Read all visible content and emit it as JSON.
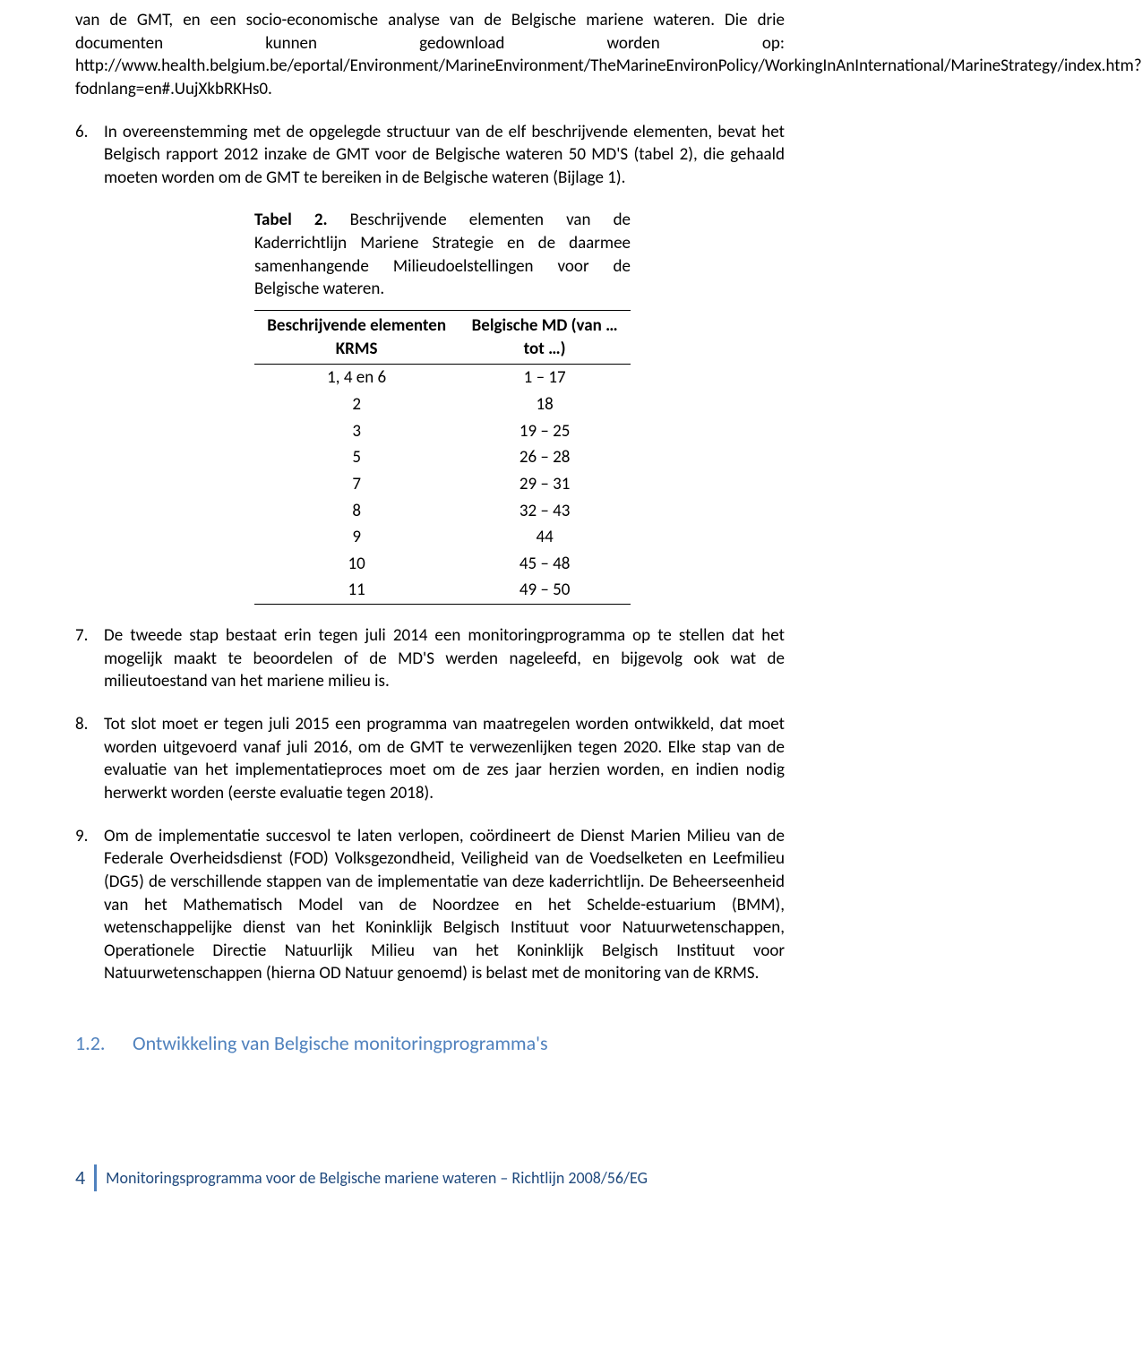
{
  "para5_continuation": "van de GMT, en een socio-economische analyse van de Belgische mariene wateren. Die drie documenten kunnen gedownload worden op: http://www.health.belgium.be/eportal/Environment/MarineEnvironment/TheMarineEnvironPolicy/WorkingInAnInternational/MarineStrategy/index.htm?fodnlang=en#.UujXkbRKHs0.",
  "para6": {
    "num": "6.",
    "text": "In overeenstemming met de opgelegde structuur van de elf beschrijvende elementen, bevat het Belgisch rapport 2012 inzake de GMT voor de Belgische wateren 50  MD'S (tabel 2), die gehaald moeten worden om de GMT te bereiken in de Belgische wateren (Bijlage 1)."
  },
  "table": {
    "caption_bold": "Tabel 2.",
    "caption_rest": " Beschrijvende elementen van de Kaderrichtlijn Mariene Strategie en de daarmee samenhangende Milieudoelstellingen voor de Belgische wateren.",
    "header_col1": "Beschrijvende elementen KRMS",
    "header_col2": "Belgische MD (van … tot …)",
    "rows": [
      {
        "c1": "1, 4 en 6",
        "c2": "1 – 17"
      },
      {
        "c1": "2",
        "c2": "18"
      },
      {
        "c1": "3",
        "c2": "19 – 25"
      },
      {
        "c1": "5",
        "c2": "26 – 28"
      },
      {
        "c1": "7",
        "c2": "29 – 31"
      },
      {
        "c1": "8",
        "c2": "32 – 43"
      },
      {
        "c1": "9",
        "c2": "44"
      },
      {
        "c1": "10",
        "c2": "45 – 48"
      },
      {
        "c1": "11",
        "c2": "49 – 50"
      }
    ]
  },
  "para7": {
    "num": "7.",
    "text": "De tweede stap bestaat erin tegen juli 2014 een monitoringprogramma op te stellen dat het mogelijk maakt te beoordelen of de MD'S werden nageleefd, en bijgevolg ook wat de milieutoestand van het mariene milieu is."
  },
  "para8": {
    "num": "8.",
    "text": "Tot slot moet er tegen juli 2015 een programma van maatregelen worden ontwikkeld, dat moet worden uitgevoerd vanaf juli 2016, om de GMT te verwezenlijken tegen 2020. Elke stap van de evaluatie van het implementatieproces moet om de zes jaar herzien worden, en indien nodig herwerkt worden (eerste evaluatie tegen 2018)."
  },
  "para9": {
    "num": "9.",
    "text": "Om de implementatie succesvol te laten verlopen, coördineert de Dienst Marien Milieu van de Federale Overheidsdienst (FOD) Volksgezondheid, Veiligheid van de Voedselketen en Leefmilieu (DG5) de verschillende stappen van de implementatie van deze kaderrichtlijn. De Beheerseenheid van het Mathematisch Model van de Noordzee en het Schelde-estuarium (BMM), wetenschappelijke dienst van het Koninklijk Belgisch Instituut voor Natuurwetenschappen, Operationele Directie Natuurlijk Milieu van het Koninklijk Belgisch Instituut voor Natuurwetenschappen (hierna OD Natuur genoemd) is belast met de monitoring van de KRMS."
  },
  "section": {
    "num": "1.2.",
    "title": "Ontwikkeling van Belgische monitoringprogramma's"
  },
  "footer": {
    "page": "4",
    "text": "Monitoringsprogramma voor de Belgische mariene wateren – Richtlijn 2008/56/EG"
  }
}
